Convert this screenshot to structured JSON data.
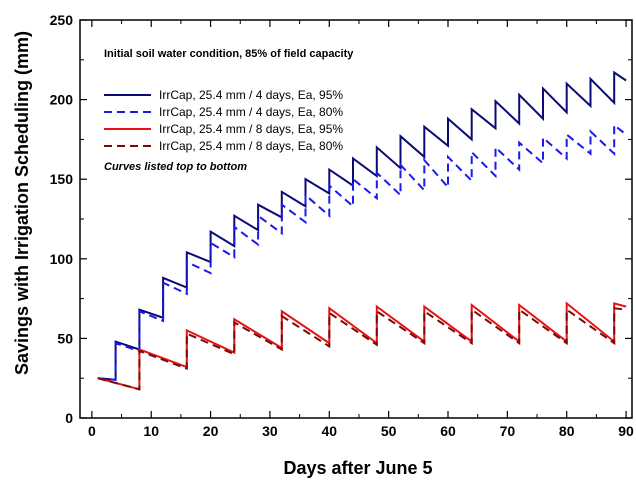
{
  "chart_data": {
    "type": "line",
    "xlabel": "Days after June 5",
    "ylabel": "Savings with Irrigation Scheduling (mm)",
    "xlim": [
      -2,
      91
    ],
    "ylim": [
      0,
      250
    ],
    "xticks": [
      0,
      10,
      20,
      30,
      40,
      50,
      60,
      70,
      80,
      90
    ],
    "yticks": [
      0,
      50,
      100,
      150,
      200,
      250
    ],
    "grid": false,
    "legend_position": "top-left",
    "annotations": {
      "condition": "Initial soil water condition, 85% of field capacity",
      "order_note": "Curves listed top to bottom"
    },
    "series": [
      {
        "name": "IrrCap, 25.4 mm / 4 days, Ea, 95%",
        "color": "#0a0a78",
        "dash": "solid",
        "x": [
          1,
          4,
          4,
          8,
          8,
          12,
          12,
          16,
          16,
          20,
          20,
          24,
          24,
          28,
          28,
          32,
          32,
          36,
          36,
          40,
          40,
          44,
          44,
          48,
          48,
          52,
          52,
          56,
          56,
          60,
          60,
          64,
          64,
          68,
          68,
          72,
          72,
          76,
          76,
          80,
          80,
          84,
          84,
          88,
          88,
          90
        ],
        "y": [
          25,
          24,
          48,
          43,
          68,
          63,
          88,
          82,
          104,
          98,
          117,
          108,
          127,
          118,
          134,
          126,
          142,
          133,
          150,
          141,
          156,
          146,
          163,
          152,
          170,
          157,
          177,
          164,
          183,
          171,
          188,
          175,
          194,
          182,
          199,
          185,
          203,
          188,
          207,
          192,
          210,
          196,
          213,
          198,
          217,
          212
        ]
      },
      {
        "name": "IrrCap, 25.4 mm / 4 days, Ea, 80%",
        "color": "#1a1aee",
        "dash": "dashed",
        "x": [
          1,
          4,
          4,
          8,
          8,
          12,
          12,
          16,
          16,
          20,
          20,
          24,
          24,
          28,
          28,
          32,
          32,
          36,
          36,
          40,
          40,
          44,
          44,
          48,
          48,
          52,
          52,
          56,
          56,
          60,
          60,
          64,
          64,
          68,
          68,
          72,
          72,
          76,
          76,
          80,
          80,
          84,
          84,
          88,
          88,
          90
        ],
        "y": [
          25,
          24,
          47,
          42,
          67,
          61,
          85,
          78,
          98,
          91,
          110,
          101,
          120,
          109,
          127,
          116,
          134,
          123,
          140,
          127,
          146,
          133,
          150,
          138,
          154,
          140,
          159,
          143,
          162,
          145,
          164,
          149,
          167,
          152,
          170,
          156,
          173,
          160,
          176,
          163,
          178,
          166,
          180,
          166,
          184,
          178
        ]
      },
      {
        "name": "IrrCap, 25.4 mm / 8 days, Ea, 95%",
        "color": "#e81010",
        "dash": "solid",
        "x": [
          1,
          8,
          8,
          16,
          16,
          24,
          24,
          32,
          32,
          40,
          40,
          48,
          48,
          56,
          56,
          64,
          64,
          72,
          72,
          80,
          80,
          88,
          88,
          90
        ],
        "y": [
          25,
          18,
          43,
          32,
          55,
          41,
          62,
          44,
          67,
          47,
          69,
          47,
          70,
          48,
          70,
          48,
          71,
          48,
          71,
          48,
          72,
          48,
          72,
          70
        ]
      },
      {
        "name": "IrrCap, 25.4 mm / 8 days, Ea, 80%",
        "color": "#7a0a0a",
        "dash": "dashed",
        "x": [
          1,
          8,
          8,
          16,
          16,
          24,
          24,
          32,
          32,
          40,
          40,
          48,
          48,
          56,
          56,
          64,
          64,
          72,
          72,
          80,
          80,
          88,
          88,
          90
        ],
        "y": [
          25,
          18,
          42,
          31,
          53,
          40,
          60,
          43,
          64,
          45,
          66,
          46,
          67,
          47,
          67,
          47,
          68,
          47,
          68,
          47,
          68,
          47,
          69,
          68
        ]
      }
    ]
  }
}
